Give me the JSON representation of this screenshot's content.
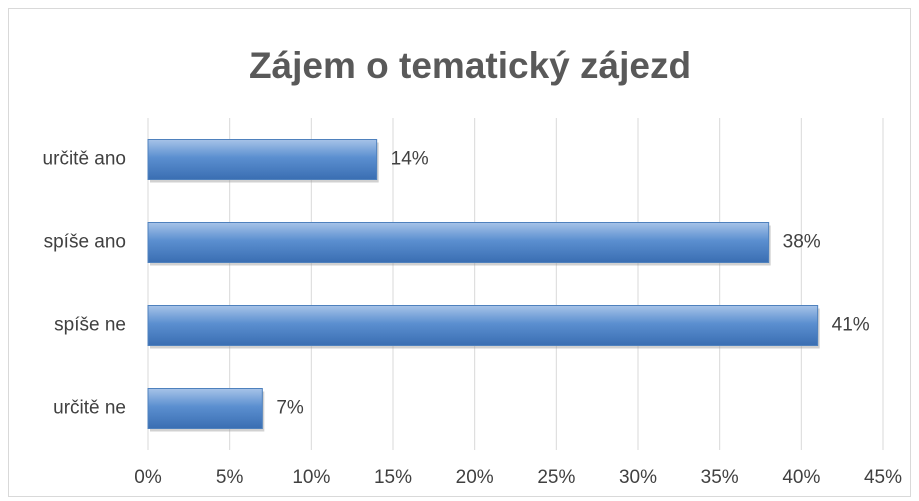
{
  "chart_data": {
    "type": "bar",
    "orientation": "horizontal",
    "title": "Zájem o tematický zájezd",
    "categories": [
      "určitě ano",
      "spíše ano",
      "spíše ne",
      "určitě ne"
    ],
    "values": [
      14,
      38,
      41,
      7
    ],
    "value_labels": [
      "14%",
      "38%",
      "41%",
      "7%"
    ],
    "color": "#4f81bd",
    "xlim": [
      0,
      45
    ],
    "xticks": [
      {
        "value": 0,
        "label": "0%"
      },
      {
        "value": 5,
        "label": "5%"
      },
      {
        "value": 10,
        "label": "10%"
      },
      {
        "value": 15,
        "label": "15%"
      },
      {
        "value": 20,
        "label": "20%"
      },
      {
        "value": 25,
        "label": "25%"
      },
      {
        "value": 30,
        "label": "30%"
      },
      {
        "value": 35,
        "label": "35%"
      },
      {
        "value": 40,
        "label": "40%"
      },
      {
        "value": 45,
        "label": "45%"
      }
    ],
    "grid": true
  }
}
